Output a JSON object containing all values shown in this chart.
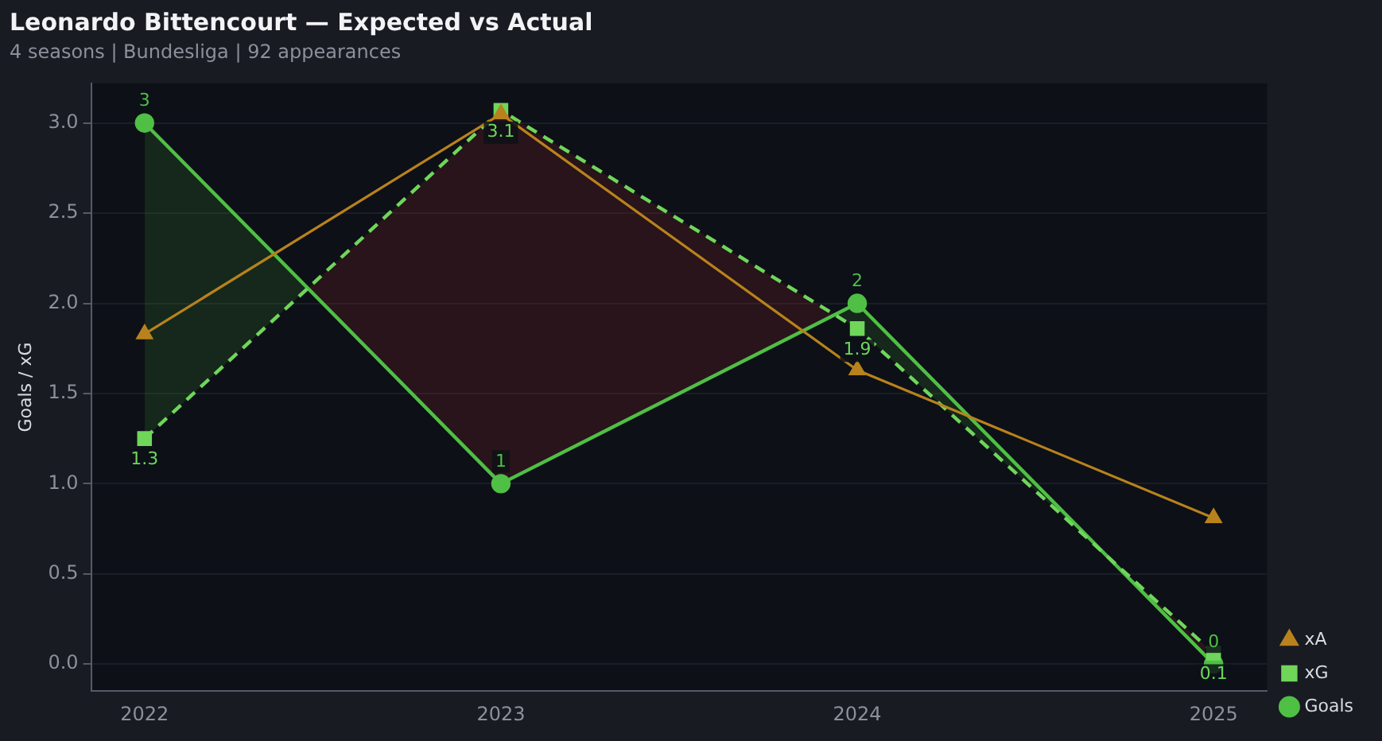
{
  "chart_data": {
    "type": "line",
    "title": "Leonardo Bittencourt — Expected vs Actual",
    "subtitle": "4 seasons | Bundesliga | 92 appearances",
    "ylabel": "Goals / xG",
    "x": [
      2022,
      2023,
      2024,
      2025
    ],
    "xlim": [
      2021.85,
      2025.15
    ],
    "xticks": [
      2022,
      2023,
      2024,
      2025
    ],
    "ylim": [
      -0.15,
      3.22
    ],
    "yticks": [
      {
        "value": 0,
        "label": "0.0"
      },
      0.5,
      {
        "value": 1,
        "label": "1.0"
      },
      1.5,
      {
        "value": 2,
        "label": "2.0"
      },
      2.5,
      {
        "value": 3,
        "label": "3.0"
      }
    ],
    "grid": "y",
    "legend": "right",
    "series": [
      {
        "name": "Goals",
        "color": "#4fbf45",
        "values": [
          3,
          1,
          2,
          0
        ],
        "marker": "circle",
        "line_style": "solid",
        "value_labels": [
          "3",
          "1",
          "2",
          "0"
        ]
      },
      {
        "name": "xG",
        "color": "#6fd65a",
        "values": [
          1.25,
          3.07,
          1.86,
          0.06
        ],
        "marker": "square",
        "line_style": "dashed",
        "value_labels": [
          "1.3",
          "3.1",
          "1.9",
          "0.1"
        ]
      },
      {
        "name": "xA",
        "color": "#b8821c",
        "values": [
          1.83,
          3.05,
          1.63,
          0.81
        ],
        "marker": "triangle",
        "line_style": "solid"
      }
    ]
  }
}
